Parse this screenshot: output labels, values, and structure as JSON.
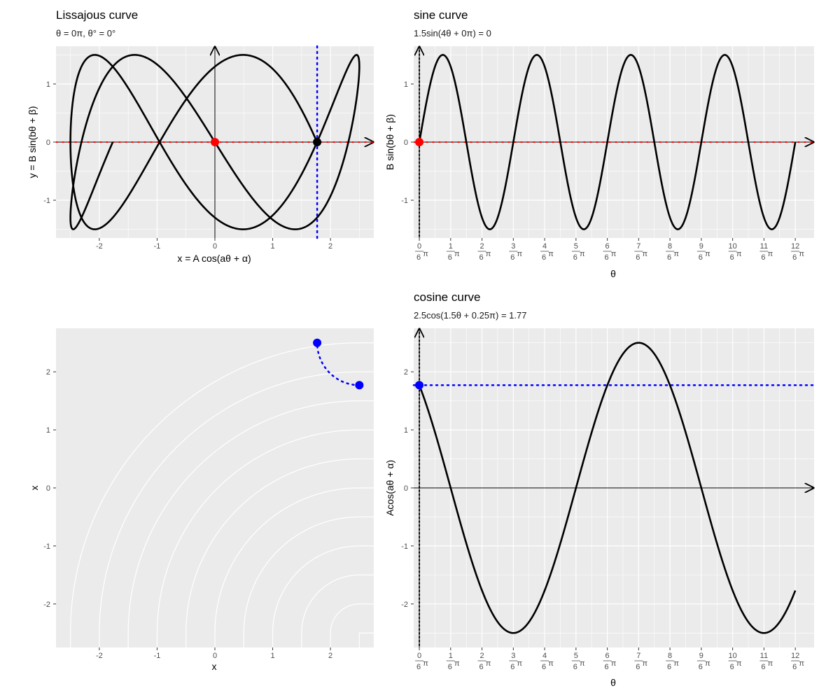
{
  "chart_data": [
    {
      "type": "line",
      "panel": "lissajous",
      "title": "Lissajous curve",
      "subtitle": "θ = 0π, θ° = 0°",
      "xlabel": "x = A cos(aθ + α)",
      "ylabel": "y = B sin(bθ + β)",
      "xlim": [
        -2.75,
        2.75
      ],
      "ylim": [
        -1.65,
        1.65
      ],
      "x_ticks": [
        -2,
        -1,
        0,
        1,
        2
      ],
      "y_ticks": [
        -1,
        0,
        1
      ],
      "x_tick_labels": [
        "-2",
        "-1",
        "0",
        "1",
        "2"
      ],
      "y_tick_labels": [
        "-1",
        "0",
        "1"
      ],
      "params": {
        "A": 2.5,
        "a": 1.5,
        "alpha_pi": 0.25,
        "B": 1.5,
        "b": 4,
        "beta_pi": 0
      },
      "theta_range_pi": [
        0,
        2
      ],
      "point_red": [
        0,
        0
      ],
      "point_black": [
        1.77,
        0
      ],
      "vline_blue_x": 1.77,
      "grid": true
    },
    {
      "type": "line",
      "panel": "sine",
      "title": "sine curve",
      "subtitle": "1.5sin(4θ + 0π) = 0",
      "xlabel": "θ",
      "ylabel": "B sin(bθ + β)",
      "xlim_pi": [
        -0.03,
        2.1
      ],
      "ylim": [
        -1.65,
        1.65
      ],
      "x_tick_numerators": [
        "0",
        "1",
        "2",
        "3",
        "4",
        "5",
        "6",
        "7",
        "8",
        "9",
        "10",
        "11",
        "12"
      ],
      "x_tick_denominator": "6",
      "x_tick_symbol": "π",
      "y_ticks": [
        -1,
        0,
        1
      ],
      "y_tick_labels": [
        "-1",
        "0",
        "1"
      ],
      "params": {
        "B": 1.5,
        "b": 4,
        "beta_pi": 0
      },
      "point_red": [
        0,
        0
      ],
      "grid": true
    },
    {
      "type": "line",
      "panel": "circle",
      "title": "",
      "xlabel": "x",
      "ylabel": "x",
      "xlim": [
        -2.75,
        2.75
      ],
      "ylim": [
        -2.75,
        2.75
      ],
      "x_ticks": [
        -2,
        -1,
        0,
        1,
        2
      ],
      "y_ticks": [
        -2,
        -1,
        0,
        1,
        2
      ],
      "x_tick_labels": [
        "-2",
        "-1",
        "0",
        "1",
        "2"
      ],
      "y_tick_labels": [
        "-2",
        "-1",
        "0",
        "1",
        "2"
      ],
      "arc_radius": 2.5,
      "arc_angle_range_pi": [
        0,
        0.25
      ],
      "point_start": [
        2.5,
        1.77
      ],
      "point_end": [
        1.77,
        2.5
      ],
      "grid": "polar"
    },
    {
      "type": "line",
      "panel": "cosine",
      "title": "cosine curve",
      "subtitle": "2.5cos(1.5θ + 0.25π) = 1.77",
      "xlabel": "θ",
      "ylabel": "Acos(aθ + α)",
      "xlim_pi": [
        -0.03,
        2.1
      ],
      "ylim": [
        -2.75,
        2.75
      ],
      "x_tick_numerators": [
        "0",
        "1",
        "2",
        "3",
        "4",
        "5",
        "6",
        "7",
        "8",
        "9",
        "10",
        "11",
        "12"
      ],
      "x_tick_denominator": "6",
      "x_tick_symbol": "π",
      "y_ticks": [
        -2,
        -1,
        0,
        1,
        2
      ],
      "y_tick_labels": [
        "-2",
        "-1",
        "0",
        "1",
        "2"
      ],
      "params": {
        "A": 2.5,
        "a": 1.5,
        "alpha_pi": 0.25
      },
      "point_blue": [
        0,
        1.77
      ],
      "hline_blue_y": 1.77,
      "grid": true
    }
  ],
  "colors": {
    "panel_bg": "#ebebeb",
    "grid": "#ffffff",
    "curve": "#000000",
    "red": "#ff0000",
    "blue": "#0000ff",
    "tick_text": "#4d4d4d"
  }
}
